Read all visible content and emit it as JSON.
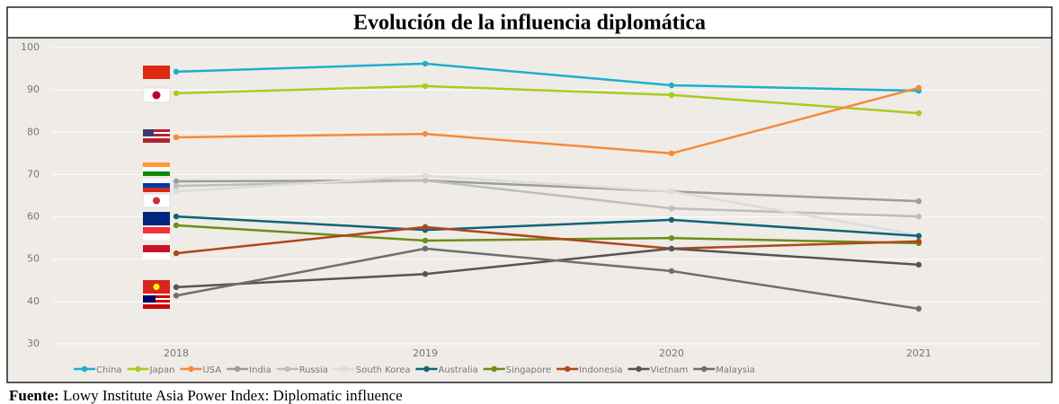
{
  "chart_data": {
    "type": "line",
    "title": "Evolución de la influencia diplomática",
    "source_label": "Fuente:",
    "source": "Lowy Institute Asia Power Index: Diplomatic influence",
    "categories": [
      "2018",
      "2019",
      "2020",
      "2021"
    ],
    "ylim": [
      30,
      100
    ],
    "yticks": [
      30,
      40,
      50,
      60,
      70,
      80,
      90,
      100
    ],
    "grid": true,
    "series": [
      {
        "name": "China",
        "color": "#1bb0cc",
        "values": [
          94.3,
          96.2,
          91.1,
          89.8
        ]
      },
      {
        "name": "Japan",
        "color": "#a8cc1c",
        "values": [
          89.2,
          90.9,
          88.8,
          84.5
        ]
      },
      {
        "name": "USA",
        "color": "#f58a3a",
        "values": [
          78.8,
          79.6,
          75.0,
          90.5
        ]
      },
      {
        "name": "India",
        "color": "#9c9c9c",
        "values": [
          68.4,
          68.6,
          66.0,
          63.7
        ]
      },
      {
        "name": "Russia",
        "color": "#bdbdbd",
        "values": [
          67.3,
          68.6,
          62.0,
          60.1
        ]
      },
      {
        "name": "South Korea",
        "color": "#dcdcdc",
        "values": [
          66.0,
          69.7,
          66.0,
          55.7
        ]
      },
      {
        "name": "Australia",
        "color": "#0e6478",
        "values": [
          60.1,
          56.9,
          59.3,
          55.5
        ]
      },
      {
        "name": "Singapore",
        "color": "#6b8e17",
        "values": [
          58.0,
          54.4,
          55.0,
          53.8
        ]
      },
      {
        "name": "Indonesia",
        "color": "#b0461a",
        "values": [
          51.4,
          57.6,
          52.5,
          54.2
        ]
      },
      {
        "name": "Vietnam",
        "color": "#555555",
        "values": [
          43.4,
          46.5,
          52.5,
          48.7
        ]
      },
      {
        "name": "Malaysia",
        "color": "#6e6e6e",
        "values": [
          41.4,
          52.5,
          47.2,
          38.3
        ]
      }
    ]
  }
}
